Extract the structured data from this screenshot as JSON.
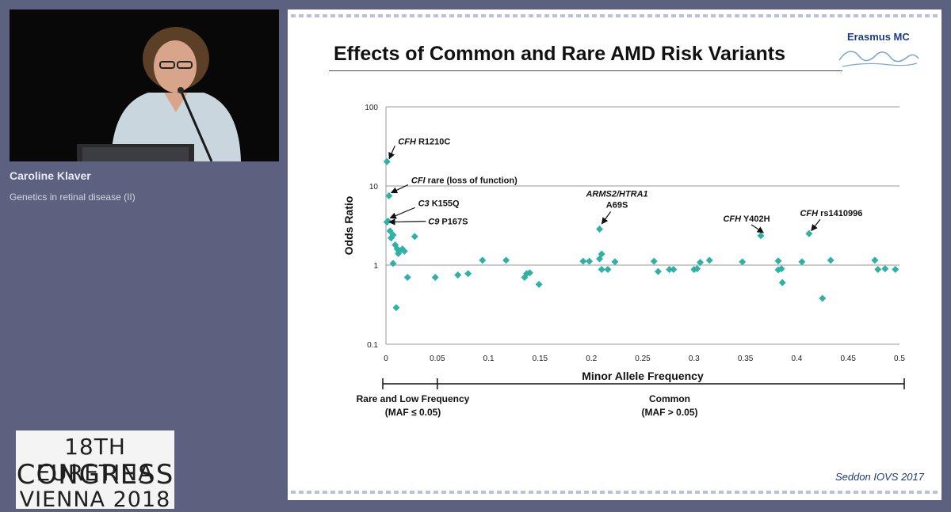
{
  "speaker": {
    "name": "Caroline Klaver",
    "session": "Genetics in retinal disease (II)"
  },
  "event_logo": {
    "line1_number": "18TH",
    "line1_word": "EURETINA",
    "line2": "CONGRESS",
    "line3": "VIENNA 2018"
  },
  "slide": {
    "title": "Effects of Common and Rare AMD Risk Variants",
    "brand": "Erasmus MC",
    "citation": "Seddon IOVS 2017"
  },
  "colors": {
    "marker": "#2fb1a5",
    "background": "#5c6180",
    "slide": "#ffffff"
  },
  "chart_data": {
    "type": "scatter",
    "title": "",
    "xlabel": "Minor Allele Frequency",
    "ylabel": "Odds Ratio",
    "xlim": [
      0,
      0.5
    ],
    "ylim": [
      0.1,
      100
    ],
    "y_scale": "log",
    "grid": "horizontal",
    "x_ticks": [
      "0",
      "0.05",
      "0.1",
      "0.15",
      "0.2",
      "0.25",
      "0.3",
      "0.35",
      "0.4",
      "0.45",
      "0.5"
    ],
    "y_ticks": [
      "0.1",
      "1",
      "10",
      "100"
    ],
    "series": [
      {
        "points": [
          [
            0.001,
            20.3
          ],
          [
            0.003,
            7.5
          ],
          [
            0.002,
            3.6
          ],
          [
            0.001,
            3.5
          ],
          [
            0.004,
            2.7
          ],
          [
            0.007,
            2.4
          ],
          [
            0.005,
            2.2
          ],
          [
            0.009,
            1.8
          ],
          [
            0.011,
            1.6
          ],
          [
            0.013,
            1.5
          ],
          [
            0.016,
            1.6
          ],
          [
            0.018,
            1.5
          ],
          [
            0.012,
            1.4
          ],
          [
            0.028,
            2.3
          ],
          [
            0.007,
            1.05
          ],
          [
            0.021,
            0.7
          ],
          [
            0.01,
            0.29
          ],
          [
            0.048,
            0.7
          ],
          [
            0.07,
            0.75
          ],
          [
            0.08,
            0.78
          ],
          [
            0.094,
            1.15
          ],
          [
            0.117,
            1.15
          ],
          [
            0.135,
            0.7
          ],
          [
            0.137,
            0.78
          ],
          [
            0.14,
            0.8
          ],
          [
            0.149,
            0.57
          ],
          [
            0.192,
            1.12
          ],
          [
            0.198,
            1.12
          ],
          [
            0.208,
            1.2
          ],
          [
            0.21,
            1.38
          ],
          [
            0.21,
            0.88
          ],
          [
            0.216,
            0.88
          ],
          [
            0.223,
            1.1
          ],
          [
            0.208,
            2.85
          ],
          [
            0.261,
            1.12
          ],
          [
            0.265,
            0.83
          ],
          [
            0.276,
            0.88
          ],
          [
            0.28,
            0.88
          ],
          [
            0.3,
            0.88
          ],
          [
            0.303,
            0.9
          ],
          [
            0.306,
            1.08
          ],
          [
            0.315,
            1.15
          ],
          [
            0.347,
            1.1
          ],
          [
            0.365,
            2.35
          ],
          [
            0.382,
            1.13
          ],
          [
            0.382,
            0.87
          ],
          [
            0.385,
            0.9
          ],
          [
            0.386,
            0.6
          ],
          [
            0.405,
            1.1
          ],
          [
            0.412,
            2.5
          ],
          [
            0.425,
            0.38
          ],
          [
            0.433,
            1.15
          ],
          [
            0.476,
            1.15
          ],
          [
            0.479,
            0.88
          ],
          [
            0.486,
            0.9
          ],
          [
            0.496,
            0.88
          ]
        ]
      }
    ],
    "annotations": [
      {
        "gene": "CFH",
        "variant": "R1210C",
        "x": 0.001,
        "y": 20.3
      },
      {
        "gene": "CFI",
        "variant": "rare (loss of function)",
        "x": 0.003,
        "y": 7.5
      },
      {
        "gene": "C3",
        "variant": "K155Q",
        "x": 0.002,
        "y": 3.6
      },
      {
        "gene": "C9",
        "variant": "P167S",
        "x": 0.001,
        "y": 3.5
      },
      {
        "gene": "ARMS2/HTRA1",
        "variant": "A69S",
        "x": 0.208,
        "y": 2.85
      },
      {
        "gene": "CFH",
        "variant": "Y402H",
        "x": 0.365,
        "y": 2.35
      },
      {
        "gene": "CFH",
        "variant": "rs1410996",
        "x": 0.412,
        "y": 2.5
      }
    ],
    "bracket": {
      "x_split": 0.05,
      "left_label": "Rare and Low Frequency",
      "left_sublabel": "(MAF ≤ 0.05)",
      "right_label": "Common",
      "right_sublabel": "(MAF > 0.05)"
    }
  }
}
